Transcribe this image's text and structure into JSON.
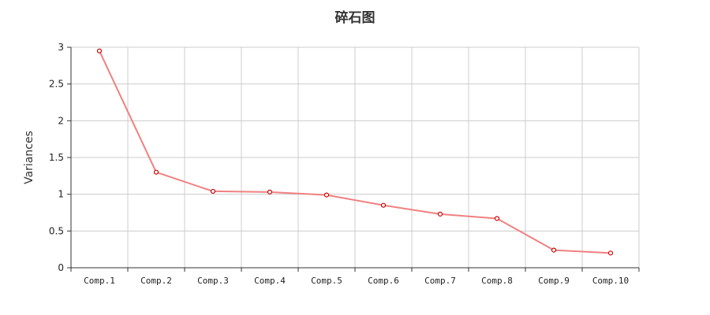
{
  "chart_data": {
    "type": "line",
    "title": "碎石图",
    "xlabel": "",
    "ylabel": "Variances",
    "categories": [
      "Comp.1",
      "Comp.2",
      "Comp.3",
      "Comp.4",
      "Comp.5",
      "Comp.6",
      "Comp.7",
      "Comp.8",
      "Comp.9",
      "Comp.10"
    ],
    "values": [
      2.95,
      1.3,
      1.04,
      1.03,
      0.99,
      0.85,
      0.73,
      0.67,
      0.24,
      0.2
    ],
    "ylim": [
      0,
      3
    ],
    "yticks": [
      "0",
      "0.5",
      "1",
      "1.5",
      "2",
      "2.5",
      "3"
    ],
    "grid": true,
    "legend": "none",
    "colors": {
      "line": "#f08080",
      "marker_edge": "#cc0000",
      "grid": "#cccccc",
      "axis": "#333333"
    }
  }
}
